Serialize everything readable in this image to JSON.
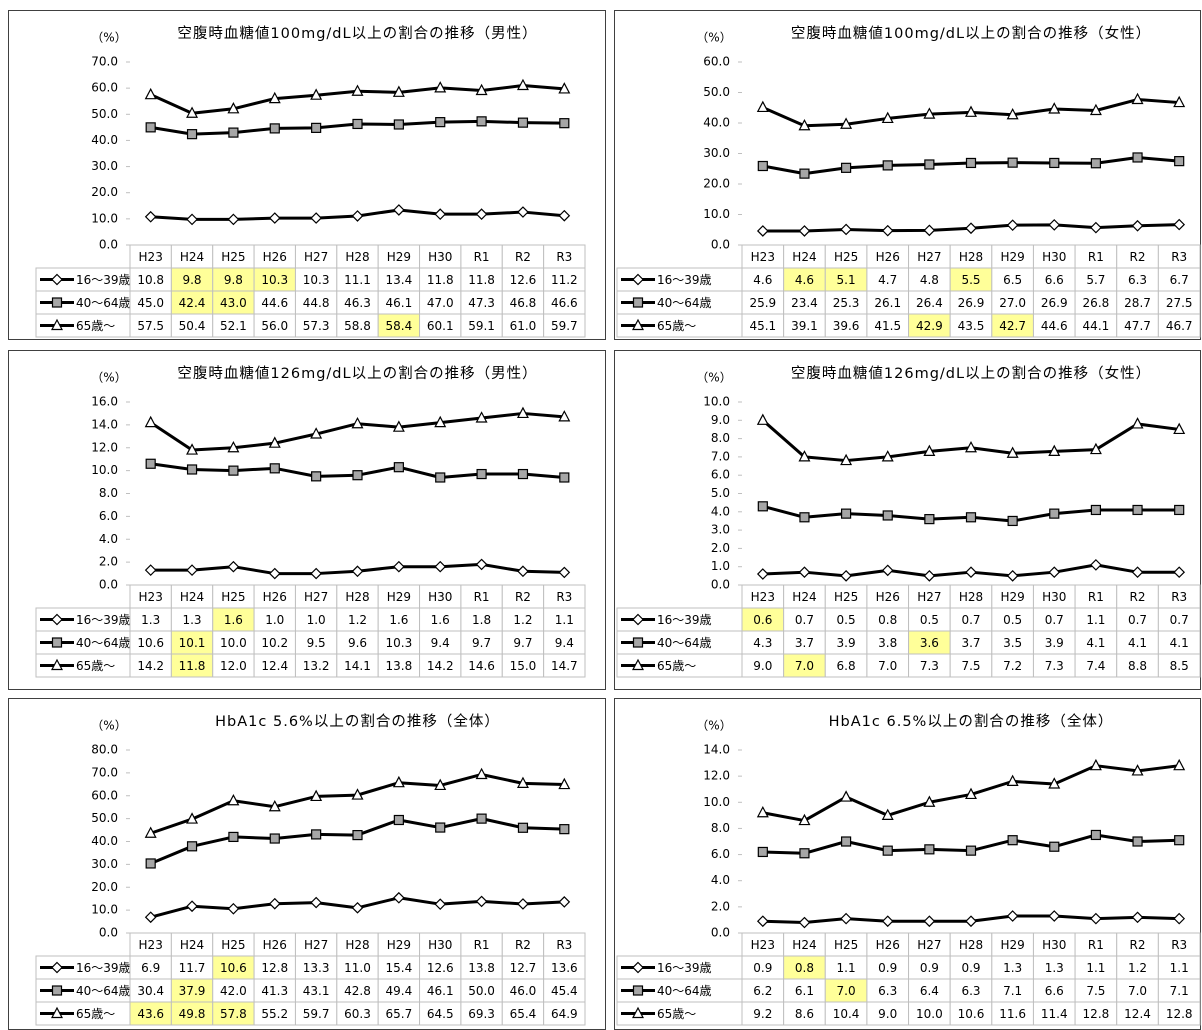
{
  "chart_data": [
    {
      "type": "line",
      "title": "空腹時血糖値100mg/dL以上の割合の推移（男性）",
      "y_label": "（%）",
      "categories": [
        "H23",
        "H24",
        "H25",
        "H26",
        "H27",
        "H28",
        "H29",
        "H30",
        "R1",
        "R2",
        "R3"
      ],
      "ylim": [
        0,
        70
      ],
      "yticks": [
        {
          "value": 0,
          "label": "0.0"
        },
        {
          "value": 10,
          "label": "10.0"
        },
        {
          "value": 20,
          "label": "20.0"
        },
        {
          "value": 30,
          "label": "30.0"
        },
        {
          "value": 40,
          "label": "40.0"
        },
        {
          "value": 50,
          "label": "50.0"
        },
        {
          "value": 60,
          "label": "60.0"
        },
        {
          "value": 70,
          "label": "70.0"
        }
      ],
      "highlight_color": "#ffff99",
      "series": [
        {
          "name": "16～39歳",
          "color": "#000000",
          "marker": "diamond",
          "marker_fill": "#ffffff",
          "values": [
            10.8,
            9.8,
            9.8,
            10.3,
            10.3,
            11.1,
            13.4,
            11.8,
            11.8,
            12.6,
            11.2
          ],
          "value_labels": [
            "10.8",
            "9.8",
            "9.8",
            "10.3",
            "10.3",
            "11.1",
            "13.4",
            "11.8",
            "11.8",
            "12.6",
            "11.2"
          ],
          "highlight": [
            1,
            2,
            3
          ]
        },
        {
          "name": "40～64歳",
          "color": "#000000",
          "marker": "square",
          "marker_fill": "#a6a6a6",
          "values": [
            45.0,
            42.4,
            43.0,
            44.6,
            44.8,
            46.3,
            46.1,
            47.0,
            47.3,
            46.8,
            46.6
          ],
          "value_labels": [
            "45.0",
            "42.4",
            "43.0",
            "44.6",
            "44.8",
            "46.3",
            "46.1",
            "47.0",
            "47.3",
            "46.8",
            "46.6"
          ],
          "highlight": [
            1,
            2
          ]
        },
        {
          "name": "65歳～",
          "color": "#000000",
          "marker": "triangle",
          "marker_fill": "#ffffff",
          "values": [
            57.5,
            50.4,
            52.1,
            56.0,
            57.3,
            58.8,
            58.4,
            60.1,
            59.1,
            61.0,
            59.7
          ],
          "value_labels": [
            "57.5",
            "50.4",
            "52.1",
            "56.0",
            "57.3",
            "58.8",
            "58.4",
            "60.1",
            "59.1",
            "61.0",
            "59.7"
          ],
          "highlight": [
            6
          ]
        }
      ]
    },
    {
      "type": "line",
      "title": "空腹時血糖値100mg/dL以上の割合の推移（女性）",
      "y_label": "（%）",
      "categories": [
        "H23",
        "H24",
        "H25",
        "H26",
        "H27",
        "H28",
        "H29",
        "H30",
        "R1",
        "R2",
        "R3"
      ],
      "ylim": [
        0,
        60
      ],
      "yticks": [
        {
          "value": 0,
          "label": "0.0"
        },
        {
          "value": 10,
          "label": "10.0"
        },
        {
          "value": 20,
          "label": "20.0"
        },
        {
          "value": 30,
          "label": "30.0"
        },
        {
          "value": 40,
          "label": "40.0"
        },
        {
          "value": 50,
          "label": "50.0"
        },
        {
          "value": 60,
          "label": "60.0"
        }
      ],
      "highlight_color": "#ffff99",
      "series": [
        {
          "name": "16～39歳",
          "color": "#000000",
          "marker": "diamond",
          "marker_fill": "#ffffff",
          "values": [
            4.6,
            4.6,
            5.1,
            4.7,
            4.8,
            5.5,
            6.5,
            6.6,
            5.7,
            6.3,
            6.7
          ],
          "value_labels": [
            "4.6",
            "4.6",
            "5.1",
            "4.7",
            "4.8",
            "5.5",
            "6.5",
            "6.6",
            "5.7",
            "6.3",
            "6.7"
          ],
          "highlight": [
            1,
            2,
            5
          ]
        },
        {
          "name": "40～64歳",
          "color": "#000000",
          "marker": "square",
          "marker_fill": "#a6a6a6",
          "values": [
            25.9,
            23.4,
            25.3,
            26.1,
            26.4,
            26.9,
            27.0,
            26.9,
            26.8,
            28.7,
            27.5
          ],
          "value_labels": [
            "25.9",
            "23.4",
            "25.3",
            "26.1",
            "26.4",
            "26.9",
            "27.0",
            "26.9",
            "26.8",
            "28.7",
            "27.5"
          ],
          "highlight": []
        },
        {
          "name": "65歳～",
          "color": "#000000",
          "marker": "triangle",
          "marker_fill": "#ffffff",
          "values": [
            45.1,
            39.1,
            39.6,
            41.5,
            42.9,
            43.5,
            42.7,
            44.6,
            44.1,
            47.7,
            46.7
          ],
          "value_labels": [
            "45.1",
            "39.1",
            "39.6",
            "41.5",
            "42.9",
            "43.5",
            "42.7",
            "44.6",
            "44.1",
            "47.7",
            "46.7"
          ],
          "highlight": [
            4,
            6
          ]
        }
      ]
    },
    {
      "type": "line",
      "title": "空腹時血糖値126mg/dL以上の割合の推移（男性）",
      "y_label": "（%）",
      "categories": [
        "H23",
        "H24",
        "H25",
        "H26",
        "H27",
        "H28",
        "H29",
        "H30",
        "R1",
        "R2",
        "R3"
      ],
      "ylim": [
        0,
        16
      ],
      "yticks": [
        {
          "value": 0,
          "label": "0.0"
        },
        {
          "value": 2,
          "label": "2.0"
        },
        {
          "value": 4,
          "label": "4.0"
        },
        {
          "value": 6,
          "label": "6.0"
        },
        {
          "value": 8,
          "label": "8.0"
        },
        {
          "value": 10,
          "label": "10.0"
        },
        {
          "value": 12,
          "label": "12.0"
        },
        {
          "value": 14,
          "label": "14.0"
        },
        {
          "value": 16,
          "label": "16.0"
        }
      ],
      "highlight_color": "#ffff99",
      "series": [
        {
          "name": "16～39歳",
          "color": "#000000",
          "marker": "diamond",
          "marker_fill": "#ffffff",
          "values": [
            1.3,
            1.3,
            1.6,
            1.0,
            1.0,
            1.2,
            1.6,
            1.6,
            1.8,
            1.2,
            1.1
          ],
          "value_labels": [
            "1.3",
            "1.3",
            "1.6",
            "1.0",
            "1.0",
            "1.2",
            "1.6",
            "1.6",
            "1.8",
            "1.2",
            "1.1"
          ],
          "highlight": [
            2
          ]
        },
        {
          "name": "40～64歳",
          "color": "#000000",
          "marker": "square",
          "marker_fill": "#a6a6a6",
          "values": [
            10.6,
            10.1,
            10.0,
            10.2,
            9.5,
            9.6,
            10.3,
            9.4,
            9.7,
            9.7,
            9.4
          ],
          "value_labels": [
            "10.6",
            "10.1",
            "10.0",
            "10.2",
            "9.5",
            "9.6",
            "10.3",
            "9.4",
            "9.7",
            "9.7",
            "9.4"
          ],
          "highlight": [
            1
          ]
        },
        {
          "name": "65歳～",
          "color": "#000000",
          "marker": "triangle",
          "marker_fill": "#ffffff",
          "values": [
            14.2,
            11.8,
            12.0,
            12.4,
            13.2,
            14.1,
            13.8,
            14.2,
            14.6,
            15.0,
            14.7
          ],
          "value_labels": [
            "14.2",
            "11.8",
            "12.0",
            "12.4",
            "13.2",
            "14.1",
            "13.8",
            "14.2",
            "14.6",
            "15.0",
            "14.7"
          ],
          "highlight": [
            1
          ]
        }
      ]
    },
    {
      "type": "line",
      "title": "空腹時血糖値126mg/dL以上の割合の推移（女性）",
      "y_label": "（%）",
      "categories": [
        "H23",
        "H24",
        "H25",
        "H26",
        "H27",
        "H28",
        "H29",
        "H30",
        "R1",
        "R2",
        "R3"
      ],
      "ylim": [
        0,
        10
      ],
      "yticks": [
        {
          "value": 0,
          "label": "0.0"
        },
        {
          "value": 1,
          "label": "1.0"
        },
        {
          "value": 2,
          "label": "2.0"
        },
        {
          "value": 3,
          "label": "3.0"
        },
        {
          "value": 4,
          "label": "4.0"
        },
        {
          "value": 5,
          "label": "5.0"
        },
        {
          "value": 6,
          "label": "6.0"
        },
        {
          "value": 7,
          "label": "7.0"
        },
        {
          "value": 8,
          "label": "8.0"
        },
        {
          "value": 9,
          "label": "9.0"
        },
        {
          "value": 10,
          "label": "10.0"
        }
      ],
      "highlight_color": "#ffff99",
      "series": [
        {
          "name": "16～39歳",
          "color": "#000000",
          "marker": "diamond",
          "marker_fill": "#ffffff",
          "values": [
            0.6,
            0.7,
            0.5,
            0.8,
            0.5,
            0.7,
            0.5,
            0.7,
            1.1,
            0.7,
            0.7
          ],
          "value_labels": [
            "0.6",
            "0.7",
            "0.5",
            "0.8",
            "0.5",
            "0.7",
            "0.5",
            "0.7",
            "1.1",
            "0.7",
            "0.7"
          ],
          "highlight": [
            0
          ]
        },
        {
          "name": "40～64歳",
          "color": "#000000",
          "marker": "square",
          "marker_fill": "#a6a6a6",
          "values": [
            4.3,
            3.7,
            3.9,
            3.8,
            3.6,
            3.7,
            3.5,
            3.9,
            4.1,
            4.1,
            4.1
          ],
          "value_labels": [
            "4.3",
            "3.7",
            "3.9",
            "3.8",
            "3.6",
            "3.7",
            "3.5",
            "3.9",
            "4.1",
            "4.1",
            "4.1"
          ],
          "highlight": [
            4
          ]
        },
        {
          "name": "65歳～",
          "color": "#000000",
          "marker": "triangle",
          "marker_fill": "#ffffff",
          "values": [
            9.0,
            7.0,
            6.8,
            7.0,
            7.3,
            7.5,
            7.2,
            7.3,
            7.4,
            8.8,
            8.5
          ],
          "value_labels": [
            "9.0",
            "7.0",
            "6.8",
            "7.0",
            "7.3",
            "7.5",
            "7.2",
            "7.3",
            "7.4",
            "8.8",
            "8.5"
          ],
          "highlight": [
            1
          ]
        }
      ]
    },
    {
      "type": "line",
      "title": "HbA1c 5.6%以上の割合の推移（全体）",
      "y_label": "（%）",
      "categories": [
        "H23",
        "H24",
        "H25",
        "H26",
        "H27",
        "H28",
        "H29",
        "H30",
        "R1",
        "R2",
        "R3"
      ],
      "ylim": [
        0,
        80
      ],
      "yticks": [
        {
          "value": 0,
          "label": "0.0"
        },
        {
          "value": 10,
          "label": "10.0"
        },
        {
          "value": 20,
          "label": "20.0"
        },
        {
          "value": 30,
          "label": "30.0"
        },
        {
          "value": 40,
          "label": "40.0"
        },
        {
          "value": 50,
          "label": "50.0"
        },
        {
          "value": 60,
          "label": "60.0"
        },
        {
          "value": 70,
          "label": "70.0"
        },
        {
          "value": 80,
          "label": "80.0"
        }
      ],
      "highlight_color": "#ffff99",
      "series": [
        {
          "name": "16～39歳",
          "color": "#000000",
          "marker": "diamond",
          "marker_fill": "#ffffff",
          "values": [
            6.9,
            11.7,
            10.6,
            12.8,
            13.3,
            11.0,
            15.4,
            12.6,
            13.8,
            12.7,
            13.6
          ],
          "value_labels": [
            "6.9",
            "11.7",
            "10.6",
            "12.8",
            "13.3",
            "11.0",
            "15.4",
            "12.6",
            "13.8",
            "12.7",
            "13.6"
          ],
          "highlight": [
            2
          ]
        },
        {
          "name": "40～64歳",
          "color": "#000000",
          "marker": "square",
          "marker_fill": "#a6a6a6",
          "values": [
            30.4,
            37.9,
            42.0,
            41.3,
            43.1,
            42.8,
            49.4,
            46.1,
            50.0,
            46.0,
            45.4
          ],
          "value_labels": [
            "30.4",
            "37.9",
            "42.0",
            "41.3",
            "43.1",
            "42.8",
            "49.4",
            "46.1",
            "50.0",
            "46.0",
            "45.4"
          ],
          "highlight": [
            1
          ]
        },
        {
          "name": "65歳～",
          "color": "#000000",
          "marker": "triangle",
          "marker_fill": "#ffffff",
          "values": [
            43.6,
            49.8,
            57.8,
            55.2,
            59.7,
            60.3,
            65.7,
            64.5,
            69.3,
            65.4,
            64.9
          ],
          "value_labels": [
            "43.6",
            "49.8",
            "57.8",
            "55.2",
            "59.7",
            "60.3",
            "65.7",
            "64.5",
            "69.3",
            "65.4",
            "64.9"
          ],
          "highlight": [
            0,
            1,
            2
          ]
        }
      ]
    },
    {
      "type": "line",
      "title": "HbA1c 6.5%以上の割合の推移（全体）",
      "y_label": "（%）",
      "categories": [
        "H23",
        "H24",
        "H25",
        "H26",
        "H27",
        "H28",
        "H29",
        "H30",
        "R1",
        "R2",
        "R3"
      ],
      "ylim": [
        0,
        14
      ],
      "yticks": [
        {
          "value": 0,
          "label": "0.0"
        },
        {
          "value": 2,
          "label": "2.0"
        },
        {
          "value": 4,
          "label": "4.0"
        },
        {
          "value": 6,
          "label": "6.0"
        },
        {
          "value": 8,
          "label": "8.0"
        },
        {
          "value": 10,
          "label": "10.0"
        },
        {
          "value": 12,
          "label": "12.0"
        },
        {
          "value": 14,
          "label": "14.0"
        }
      ],
      "highlight_color": "#ffff99",
      "series": [
        {
          "name": "16～39歳",
          "color": "#000000",
          "marker": "diamond",
          "marker_fill": "#ffffff",
          "values": [
            0.9,
            0.8,
            1.1,
            0.9,
            0.9,
            0.9,
            1.3,
            1.3,
            1.1,
            1.2,
            1.1
          ],
          "value_labels": [
            "0.9",
            "0.8",
            "1.1",
            "0.9",
            "0.9",
            "0.9",
            "1.3",
            "1.3",
            "1.1",
            "1.2",
            "1.1"
          ],
          "highlight": [
            1
          ]
        },
        {
          "name": "40～64歳",
          "color": "#000000",
          "marker": "square",
          "marker_fill": "#a6a6a6",
          "values": [
            6.2,
            6.1,
            7.0,
            6.3,
            6.4,
            6.3,
            7.1,
            6.6,
            7.5,
            7.0,
            7.1
          ],
          "value_labels": [
            "6.2",
            "6.1",
            "7.0",
            "6.3",
            "6.4",
            "6.3",
            "7.1",
            "6.6",
            "7.5",
            "7.0",
            "7.1"
          ],
          "highlight": [
            2
          ]
        },
        {
          "name": "65歳～",
          "color": "#000000",
          "marker": "triangle",
          "marker_fill": "#ffffff",
          "values": [
            9.2,
            8.6,
            10.4,
            9.0,
            10.0,
            10.6,
            11.6,
            11.4,
            12.8,
            12.4,
            12.8
          ],
          "value_labels": [
            "9.2",
            "8.6",
            "10.4",
            "9.0",
            "10.0",
            "10.6",
            "11.6",
            "11.4",
            "12.8",
            "12.4",
            "12.8"
          ],
          "highlight": []
        }
      ]
    }
  ]
}
